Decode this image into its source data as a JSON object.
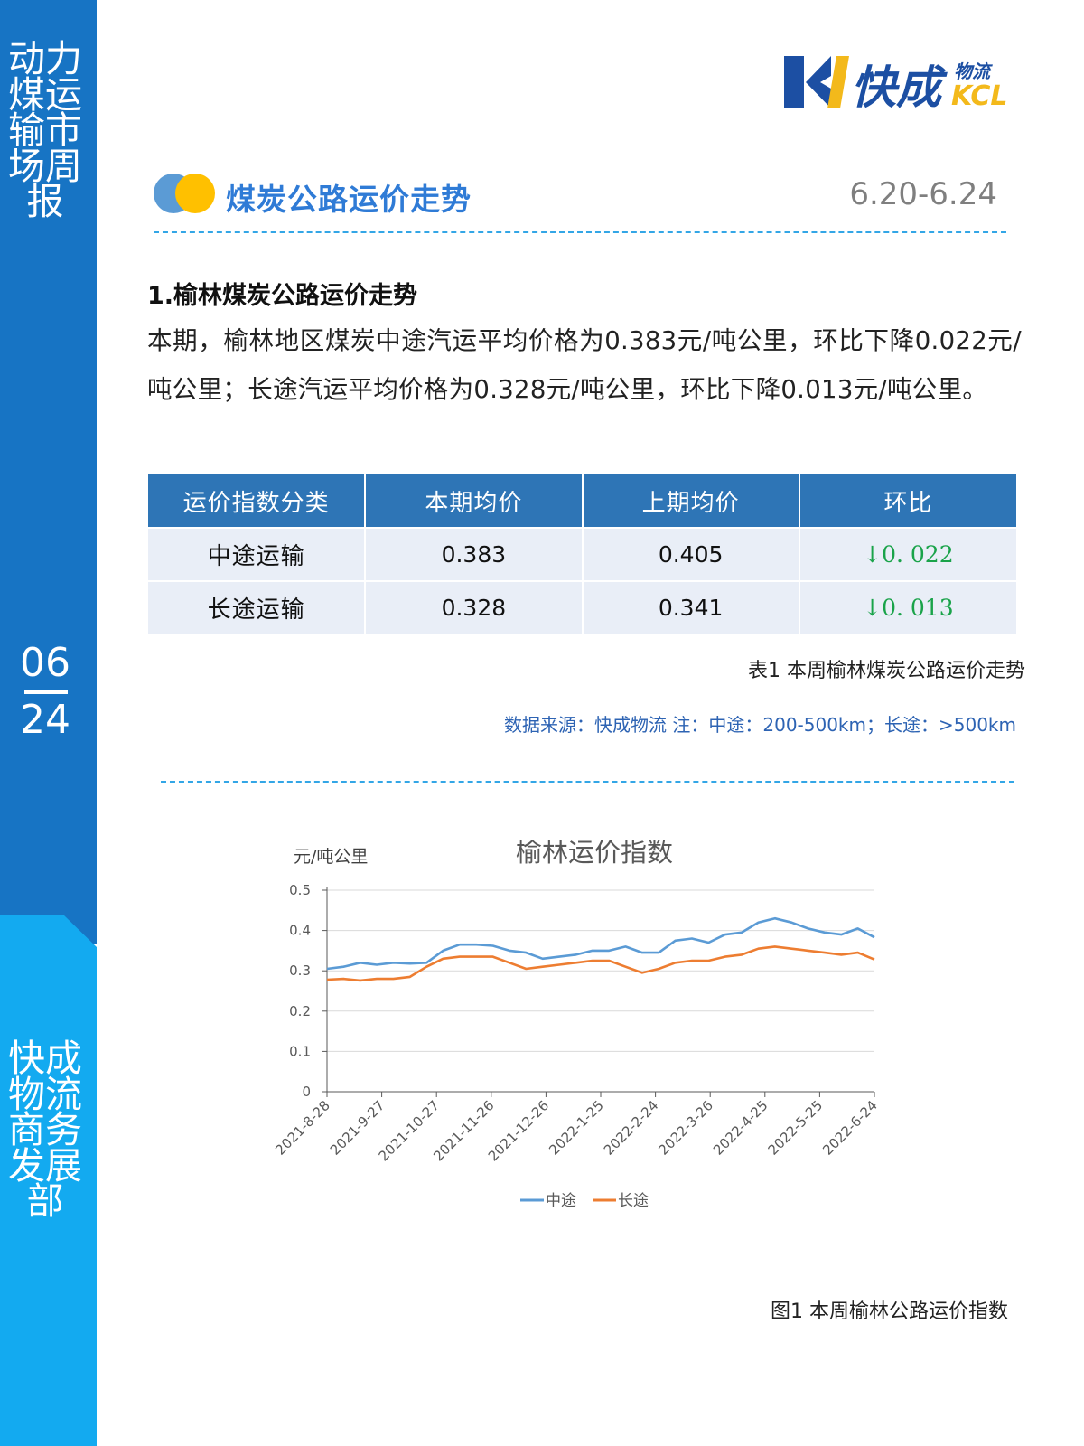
{
  "sidebar": {
    "title": "动力煤运输市场周报",
    "month": "06",
    "day": "24",
    "department": "快成物流商务发展部"
  },
  "logo": {
    "brand_cn": "快成",
    "brand_small": "物流",
    "brand_en": "KCL",
    "colors": {
      "blue": "#1c4fa3",
      "yellow": "#f3b91b"
    }
  },
  "header": {
    "title": "煤炭公路运价走势",
    "date_range": "6.20-6.24",
    "icon": "two-overlapping-circles-icon",
    "colors": {
      "circle_left": "#5b9bd5",
      "circle_right": "#ffc000",
      "title": "#2f7bd6"
    }
  },
  "content": {
    "subheading": "1.榆林煤炭公路运价走势",
    "paragraph": "本期，榆林地区煤炭中途汽运平均价格为0.383元/吨公里，环比下降0.022元/吨公里；长途汽运平均价格为0.328元/吨公里，环比下降0.013元/吨公里。"
  },
  "table": {
    "headers": [
      "运价指数分类",
      "本期均价",
      "上期均价",
      "环比"
    ],
    "rows": [
      {
        "category": "中途运输",
        "current": "0.383",
        "previous": "0.405",
        "change": "↓0. 022"
      },
      {
        "category": "长途运输",
        "current": "0.328",
        "previous": "0.341",
        "change": "↓0. 013"
      }
    ],
    "caption": "表1  本周榆林煤炭公路运价走势",
    "source_note": "数据来源：快成物流  注：中途：200-500km；长途：>500km",
    "colors": {
      "header_bg": "#2e75b6",
      "row_bg": "#e9eef7",
      "down_arrow": "#1aa34a"
    }
  },
  "chart_caption": "图1  本周榆林公路运价指数",
  "chart_data": {
    "type": "line",
    "title": "榆林运价指数",
    "ylabel": "元/吨公里",
    "xlabel": "",
    "ylim": [
      0,
      0.5
    ],
    "yticks": [
      "0",
      "0.1",
      "0.2",
      "0.3",
      "0.4",
      "0.5"
    ],
    "x_tick_labels": [
      "2021-8-28",
      "2021-9-27",
      "2021-10-27",
      "2021-11-26",
      "2021-12-26",
      "2022-1-25",
      "2022-2-24",
      "2022-3-26",
      "2022-4-25",
      "2022-5-25",
      "2022-6-24"
    ],
    "legend_position": "bottom",
    "grid": true,
    "x": [
      "2021-8-28",
      "2021-9-6",
      "2021-9-15",
      "2021-9-24",
      "2021-10-3",
      "2021-10-12",
      "2021-10-21",
      "2021-10-30",
      "2021-11-8",
      "2021-11-17",
      "2021-11-26",
      "2021-12-5",
      "2021-12-14",
      "2021-12-23",
      "2022-1-1",
      "2022-1-10",
      "2022-1-19",
      "2022-1-28",
      "2022-2-6",
      "2022-2-15",
      "2022-2-24",
      "2022-3-5",
      "2022-3-14",
      "2022-3-23",
      "2022-4-1",
      "2022-4-10",
      "2022-4-19",
      "2022-4-28",
      "2022-5-7",
      "2022-5-16",
      "2022-5-25",
      "2022-6-3",
      "2022-6-12",
      "2022-6-24"
    ],
    "series": [
      {
        "name": "中途",
        "color": "#5b9bd5",
        "values": [
          0.305,
          0.31,
          0.32,
          0.315,
          0.32,
          0.318,
          0.32,
          0.35,
          0.365,
          0.365,
          0.362,
          0.35,
          0.345,
          0.33,
          0.335,
          0.34,
          0.35,
          0.35,
          0.36,
          0.345,
          0.345,
          0.375,
          0.38,
          0.37,
          0.39,
          0.395,
          0.42,
          0.43,
          0.42,
          0.405,
          0.395,
          0.39,
          0.405,
          0.383
        ]
      },
      {
        "name": "长途",
        "color": "#ed7d31",
        "values": [
          0.278,
          0.28,
          0.276,
          0.28,
          0.28,
          0.285,
          0.31,
          0.33,
          0.335,
          0.335,
          0.335,
          0.32,
          0.305,
          0.31,
          0.315,
          0.32,
          0.325,
          0.325,
          0.31,
          0.295,
          0.305,
          0.32,
          0.325,
          0.325,
          0.335,
          0.34,
          0.355,
          0.36,
          0.355,
          0.35,
          0.345,
          0.34,
          0.345,
          0.328
        ]
      }
    ]
  }
}
